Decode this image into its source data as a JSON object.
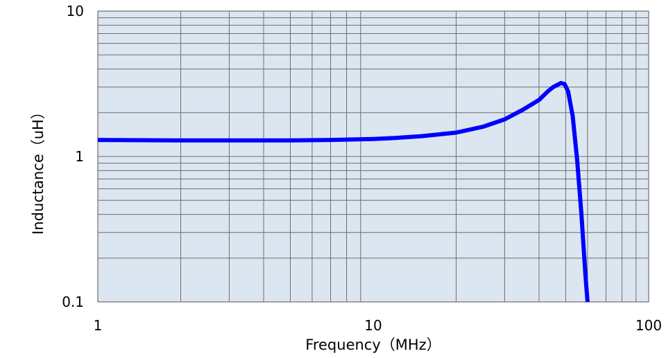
{
  "chart_data": {
    "type": "line",
    "title": "",
    "xlabel": "Frequency（MHz）",
    "ylabel": "Inductance（uH）",
    "x_scale": "log",
    "y_scale": "log",
    "xlim": [
      1,
      100
    ],
    "ylim": [
      0.1,
      10
    ],
    "x_ticks": [
      {
        "value": 1,
        "label": "1"
      },
      {
        "value": 10,
        "label": "10"
      },
      {
        "value": 100,
        "label": "100"
      }
    ],
    "y_ticks": [
      {
        "value": 0.1,
        "label": "0.1"
      },
      {
        "value": 1,
        "label": "1"
      },
      {
        "value": 10,
        "label": "10"
      }
    ],
    "grid": true,
    "colors": {
      "plot_background": "#dce6f1",
      "grid": "#6d6d6d",
      "line": "#0000ff",
      "axis": "#000000"
    },
    "series": [
      {
        "x": [
          1,
          2,
          3,
          5,
          7,
          10,
          12,
          15,
          20,
          25,
          30,
          35,
          40,
          43,
          45,
          48,
          49.5,
          51,
          53,
          55,
          57,
          59,
          60
        ],
        "values": [
          1.3,
          1.29,
          1.29,
          1.29,
          1.3,
          1.32,
          1.34,
          1.38,
          1.46,
          1.6,
          1.8,
          2.1,
          2.45,
          2.8,
          3.0,
          3.2,
          3.15,
          2.8,
          1.9,
          0.95,
          0.4,
          0.15,
          0.1
        ]
      }
    ]
  }
}
